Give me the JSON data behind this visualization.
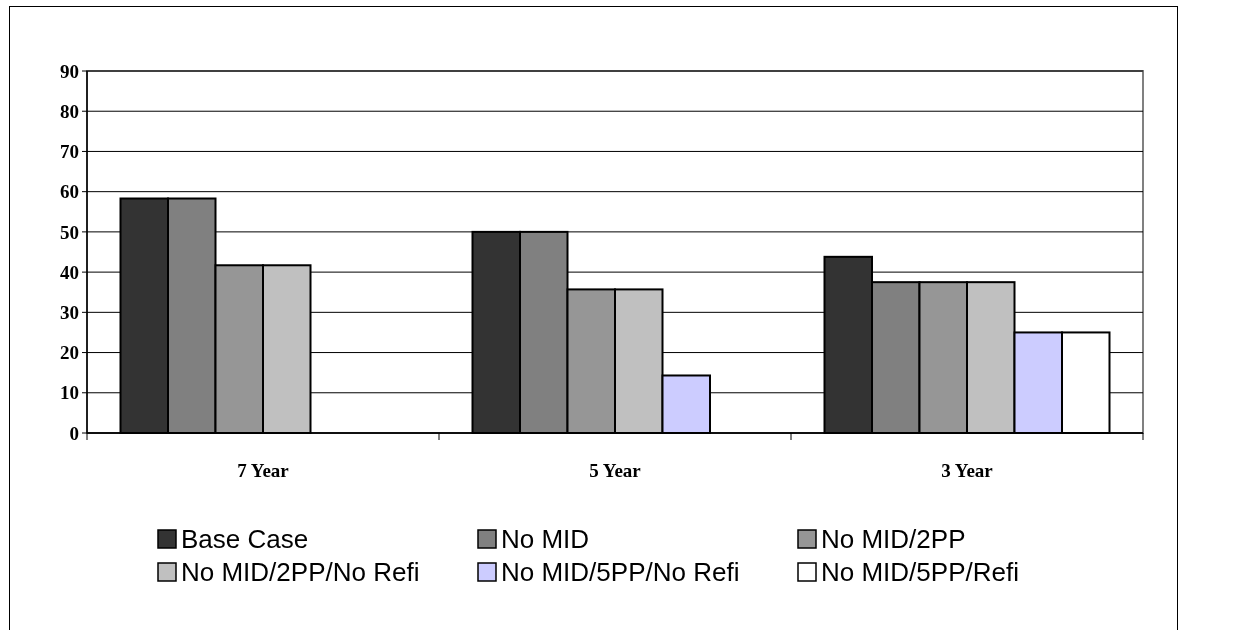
{
  "chart_data": {
    "type": "bar",
    "categories": [
      "7 Year",
      "5 Year",
      "3 Year"
    ],
    "series": [
      {
        "name": "Base Case",
        "color": "#333333",
        "values": [
          58.3,
          50,
          43.8
        ]
      },
      {
        "name": "No MID",
        "color": "#808080",
        "values": [
          58.3,
          50,
          37.5
        ]
      },
      {
        "name": "No MID/2PP",
        "color": "#969696",
        "values": [
          41.7,
          35.7,
          37.5
        ]
      },
      {
        "name": "No MID/2PP/No Refi",
        "color": "#c0c0c0",
        "values": [
          41.7,
          35.7,
          37.5
        ]
      },
      {
        "name": "No MID/5PP/No Refi",
        "color": "#ccccff",
        "values": [
          null,
          14.3,
          25
        ]
      },
      {
        "name": "No MID/5PP/Refi",
        "color": "#ffffff",
        "values": [
          null,
          null,
          25
        ]
      }
    ],
    "ylim": [
      0,
      90
    ],
    "yticks": [
      0,
      10,
      20,
      30,
      40,
      50,
      60,
      70,
      80,
      90
    ],
    "grid": "y",
    "legend": "bottom"
  }
}
